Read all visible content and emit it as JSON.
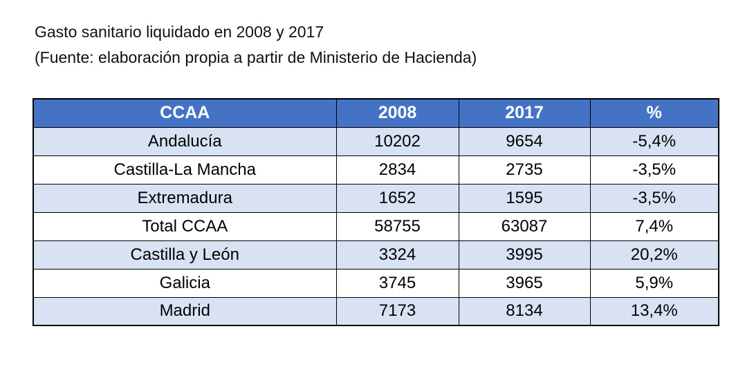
{
  "chart_data": {
    "type": "table",
    "title": "Gasto sanitario liquidado en 2008 y 2017",
    "subtitle": "(Fuente: elaboración propia a partir de Ministerio de Hacienda)",
    "columns": [
      "CCAA",
      "2008",
      "2017",
      "%"
    ],
    "rows": [
      [
        "Andalucía",
        "10202",
        "9654",
        "-5,4%"
      ],
      [
        "Castilla-La Mancha",
        "2834",
        "2735",
        "-3,5%"
      ],
      [
        "Extremadura",
        "1652",
        "1595",
        "-3,5%"
      ],
      [
        "Total CCAA",
        "58755",
        "63087",
        "7,4%"
      ],
      [
        "Castilla y León",
        "3324",
        "3995",
        "20,2%"
      ],
      [
        "Galicia",
        "3745",
        "3965",
        "5,9%"
      ],
      [
        "Madrid",
        "7173",
        "8134",
        "13,4%"
      ]
    ],
    "layout_hints": {
      "header_style": "solid blue banner, white bold text",
      "row_striping": "odd data rows light blue, even rows white",
      "grid": "on, black cell borders"
    }
  },
  "colors": {
    "header_bg": "#4472C4",
    "header_text": "#FFFFFF",
    "row_alt_bg": "#D9E2F3",
    "row_bg": "#FFFFFF",
    "border": "#000000",
    "page_bg": "#FFFFFF"
  }
}
